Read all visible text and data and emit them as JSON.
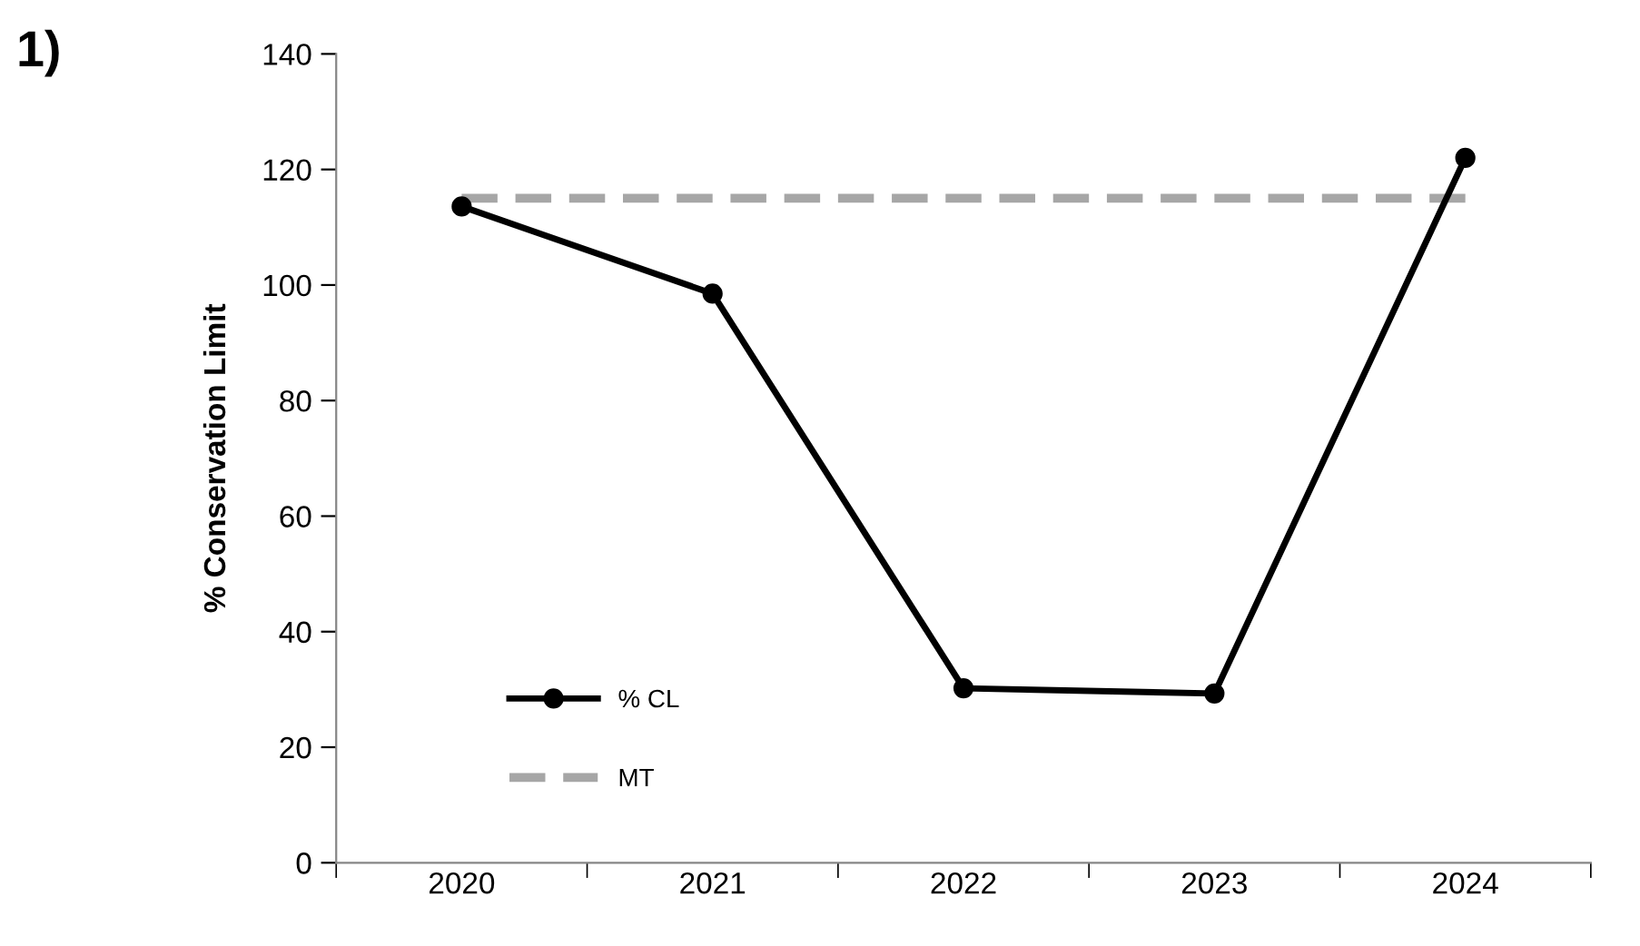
{
  "chart_data": {
    "type": "line",
    "ylabel": "% Conservation Limit",
    "annotations": [
      "1)"
    ],
    "categories": [
      "2020",
      "2021",
      "2022",
      "2023",
      "2024"
    ],
    "series": [
      {
        "name": "% CL",
        "color": "#000000",
        "values": [
          113.6,
          98.5,
          30.2,
          29.3,
          122
        ],
        "marker": "circle",
        "line_style": "solid"
      },
      {
        "name": "MT",
        "color": "#a6a6a6",
        "values": [
          115,
          115,
          115,
          115,
          115
        ],
        "marker": "none",
        "line_style": "dashed"
      }
    ],
    "ylim": [
      0,
      140
    ],
    "yticks": [
      0,
      20,
      40,
      60,
      80,
      100,
      120,
      140
    ],
    "grid": false,
    "legend": "bottom left"
  }
}
